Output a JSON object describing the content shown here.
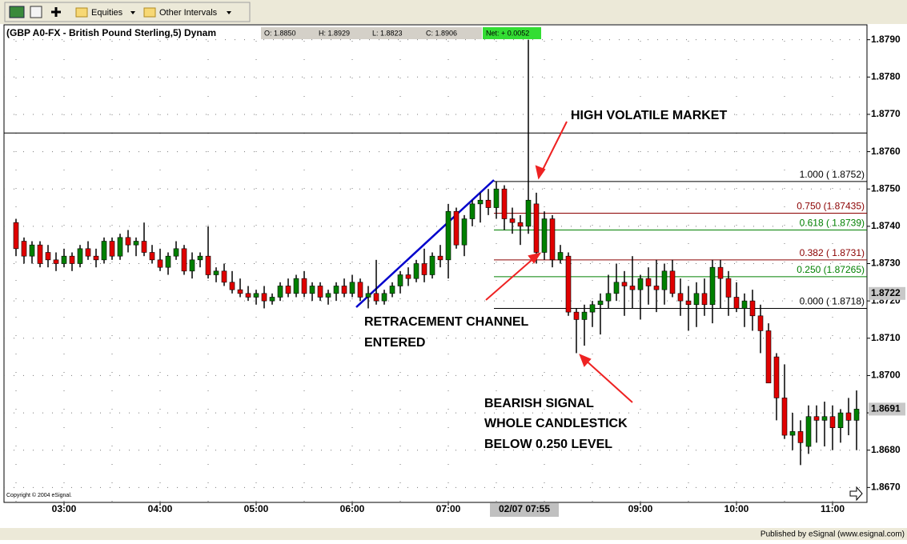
{
  "toolbar": {
    "items": [
      "Equities",
      "Other Intervals"
    ]
  },
  "chart_data": {
    "type": "candlestick",
    "title": "(GBP A0-FX - British Pound Sterling,5) Dynam",
    "ohlc_labels": [
      "O: 1.8850",
      "H: 1.8929",
      "L: 1.8823",
      "C: 1.8906"
    ],
    "net_label": "Net: + 0.0052",
    "copyright": "Copyright © 2004 eSignal.",
    "cursor_time": "02/07 07:55",
    "categories": [
      null,
      null,
      null,
      null,
      null,
      null,
      "03:00",
      null,
      null,
      null,
      null,
      null,
      null,
      null,
      null,
      null,
      null,
      null,
      "04:00",
      null,
      null,
      null,
      null,
      null,
      null,
      null,
      null,
      null,
      null,
      null,
      "05:00",
      null,
      null,
      null,
      null,
      null,
      null,
      null,
      null,
      null,
      null,
      null,
      "06:00",
      null,
      null,
      null,
      null,
      null,
      null,
      null,
      null,
      null,
      null,
      null,
      "07:00",
      null,
      null,
      null,
      null,
      null,
      null,
      null,
      null,
      null,
      null,
      null,
      null,
      null,
      null,
      null,
      null,
      null,
      null,
      null,
      null,
      null,
      null,
      null,
      "09:00",
      null,
      null,
      null,
      null,
      null,
      null,
      null,
      null,
      null,
      null,
      null,
      "10:00",
      null,
      null,
      null,
      null,
      null,
      null,
      null,
      null,
      null,
      null,
      null,
      "11:00",
      null,
      null,
      null
    ],
    "open": [
      1.8741,
      1.8736,
      1.8732,
      1.8735,
      1.8733,
      1.8731,
      1.873,
      1.8732,
      1.873,
      1.8734,
      1.8732,
      1.8731,
      1.8736,
      1.8732,
      1.8737,
      1.8735,
      1.8736,
      1.8733,
      1.8731,
      1.8729,
      1.8732,
      1.8734,
      1.8728,
      1.8731,
      1.8732,
      1.8727,
      1.8728,
      1.8725,
      1.8723,
      1.8722,
      1.8721,
      1.8722,
      1.872,
      1.8721,
      1.8724,
      1.8722,
      1.8726,
      1.8722,
      1.8724,
      1.8721,
      1.8722,
      1.8724,
      1.8722,
      1.8725,
      1.8721,
      1.8722,
      1.872,
      1.8722,
      1.8724,
      1.8727,
      1.8726,
      1.873,
      1.8727,
      1.8732,
      1.8731,
      1.8744,
      1.8735,
      1.8742,
      1.8746,
      1.8747,
      1.8745,
      1.875,
      1.8742,
      1.8741,
      1.874,
      1.8746,
      1.8733,
      1.8742,
      1.8731,
      1.8732,
      1.8717,
      1.8715,
      1.8717,
      1.8719,
      1.872,
      1.8722,
      1.8725,
      1.8724,
      1.8723,
      1.8726,
      1.8724,
      1.8723,
      1.8728,
      1.8722,
      1.872,
      1.8719,
      1.8722,
      1.8719,
      1.8729,
      1.8726,
      1.8721,
      1.8718,
      1.872,
      1.8716,
      1.8712,
      1.8705,
      1.8694,
      1.8684,
      1.8685,
      1.8681,
      1.8689,
      1.8688,
      1.8689,
      1.8686,
      1.869,
      1.8688
    ],
    "high": [
      1.8742,
      1.8737,
      1.8736,
      1.8736,
      1.8735,
      1.8733,
      1.8734,
      1.8733,
      1.8735,
      1.8736,
      1.8734,
      1.8737,
      1.8737,
      1.8738,
      1.8739,
      1.8737,
      1.8741,
      1.8735,
      1.8734,
      1.8733,
      1.8736,
      1.8735,
      1.8733,
      1.8733,
      1.874,
      1.8729,
      1.873,
      1.8728,
      1.8726,
      1.8724,
      1.8723,
      1.8724,
      1.8722,
      1.8725,
      1.8726,
      1.8727,
      1.8728,
      1.8725,
      1.8725,
      1.8723,
      1.8725,
      1.8726,
      1.8727,
      1.8726,
      1.8724,
      1.8731,
      1.8723,
      1.8725,
      1.8728,
      1.8729,
      1.8731,
      1.8734,
      1.8733,
      1.8735,
      1.8746,
      1.8745,
      1.8743,
      1.8747,
      1.8749,
      1.875,
      1.8752,
      1.8751,
      1.8745,
      1.8743,
      1.879,
      1.8749,
      1.8744,
      1.8743,
      1.8735,
      1.8733,
      1.8718,
      1.8719,
      1.872,
      1.8722,
      1.8727,
      1.873,
      1.8728,
      1.8732,
      1.8727,
      1.8729,
      1.8731,
      1.873,
      1.8731,
      1.8726,
      1.8724,
      1.8725,
      1.8726,
      1.8731,
      1.8731,
      1.8728,
      1.8725,
      1.8722,
      1.8723,
      1.8719,
      1.8714,
      1.8706,
      1.8703,
      1.869,
      1.8688,
      1.8692,
      1.8692,
      1.8693,
      1.8692,
      1.8691,
      1.8694,
      1.8696
    ],
    "low": [
      1.8732,
      1.873,
      1.873,
      1.8729,
      1.8729,
      1.8728,
      1.8729,
      1.8728,
      1.8729,
      1.8731,
      1.8729,
      1.873,
      1.8731,
      1.8731,
      1.8733,
      1.8732,
      1.8732,
      1.873,
      1.8728,
      1.8727,
      1.8731,
      1.8727,
      1.8726,
      1.8729,
      1.8726,
      1.8725,
      1.8724,
      1.8722,
      1.8721,
      1.872,
      1.8719,
      1.8718,
      1.8719,
      1.872,
      1.8721,
      1.8721,
      1.8721,
      1.872,
      1.872,
      1.8719,
      1.872,
      1.8721,
      1.8721,
      1.872,
      1.8718,
      1.8719,
      1.8719,
      1.8721,
      1.8722,
      1.8724,
      1.8725,
      1.8725,
      1.8726,
      1.8729,
      1.8726,
      1.8734,
      1.8732,
      1.874,
      1.8741,
      1.8743,
      1.8742,
      1.8739,
      1.8738,
      1.8735,
      1.8738,
      1.873,
      1.8731,
      1.8729,
      1.873,
      1.8716,
      1.8706,
      1.8708,
      1.8713,
      1.8711,
      1.8718,
      1.872,
      1.8716,
      1.8718,
      1.8715,
      1.8719,
      1.8717,
      1.8719,
      1.8721,
      1.8716,
      1.8712,
      1.8713,
      1.8716,
      1.8714,
      1.8718,
      1.8716,
      1.8717,
      1.8713,
      1.8712,
      1.8706,
      1.8698,
      1.8688,
      1.8683,
      1.868,
      1.8676,
      1.8679,
      1.8682,
      1.8681,
      1.868,
      1.8682,
      1.8684,
      1.868
    ],
    "close": [
      1.8734,
      1.8732,
      1.8735,
      1.873,
      1.8731,
      1.873,
      1.8732,
      1.873,
      1.8734,
      1.8732,
      1.8731,
      1.8736,
      1.8732,
      1.8737,
      1.8735,
      1.8736,
      1.8733,
      1.8731,
      1.8729,
      1.8732,
      1.8734,
      1.8728,
      1.8731,
      1.8732,
      1.8727,
      1.8728,
      1.8725,
      1.8723,
      1.8722,
      1.8721,
      1.8722,
      1.872,
      1.8721,
      1.8724,
      1.8722,
      1.8726,
      1.8722,
      1.8724,
      1.8721,
      1.8722,
      1.8724,
      1.8722,
      1.8725,
      1.8721,
      1.8722,
      1.872,
      1.8722,
      1.8724,
      1.8727,
      1.8726,
      1.873,
      1.8727,
      1.8732,
      1.8731,
      1.8744,
      1.8735,
      1.8742,
      1.8746,
      1.8747,
      1.8745,
      1.875,
      1.8742,
      1.8741,
      1.874,
      1.8747,
      1.8733,
      1.8742,
      1.8731,
      1.8733,
      1.8717,
      1.8715,
      1.8717,
      1.8719,
      1.872,
      1.8722,
      1.8725,
      1.8724,
      1.8723,
      1.8726,
      1.8724,
      1.8723,
      1.8728,
      1.8722,
      1.872,
      1.8719,
      1.8722,
      1.8719,
      1.8729,
      1.8726,
      1.8721,
      1.8718,
      1.872,
      1.8716,
      1.8712,
      1.8698,
      1.8694,
      1.8684,
      1.8685,
      1.8682,
      1.8689,
      1.8688,
      1.8689,
      1.8686,
      1.869,
      1.8688,
      1.8691
    ],
    "up_color": "#008000",
    "down_color": "#e00000",
    "ylim": [
      1.8666,
      1.8794
    ],
    "yticks": [
      {
        "value": 1.879,
        "label": "1.8790"
      },
      {
        "value": 1.878,
        "label": "1.8780"
      },
      {
        "value": 1.877,
        "label": "1.8770"
      },
      {
        "value": 1.876,
        "label": "1.8760"
      },
      {
        "value": 1.875,
        "label": "1.8750"
      },
      {
        "value": 1.874,
        "label": "1.8740"
      },
      {
        "value": 1.873,
        "label": "1.8730"
      },
      {
        "value": 1.872,
        "label": "1.8720"
      },
      {
        "value": 1.871,
        "label": "1.8710"
      },
      {
        "value": 1.87,
        "label": "1.8700"
      },
      {
        "value": 1.869,
        "label": "1.8690"
      },
      {
        "value": 1.868,
        "label": "1.8680"
      },
      {
        "value": 1.867,
        "label": "1.8670"
      }
    ],
    "grid": true,
    "price_markers": [
      1.8722,
      1.8691
    ],
    "horizontal_line": 1.8765,
    "fib_levels": [
      {
        "value": 1.8752,
        "label": "1.000 ( 1.8752)",
        "color": "#000000"
      },
      {
        "value": 1.87435,
        "label": "0.750 (1.87435)",
        "color": "#8b0000"
      },
      {
        "value": 1.8739,
        "label": "0.618 ( 1.8739)",
        "color": "#008000"
      },
      {
        "value": 1.8731,
        "label": "0.382 ( 1.8731)",
        "color": "#8b0000"
      },
      {
        "value": 1.87265,
        "label": "0.250 (1.87265)",
        "color": "#008000"
      },
      {
        "value": 1.8718,
        "label": "0.000 ( 1.8718)",
        "color": "#000000"
      }
    ],
    "annotations": [
      "HIGH VOLATILE MARKET",
      "RETRACEMENT CHANNEL",
      "ENTERED",
      "BEARISH SIGNAL",
      "WHOLE CANDLESTICK",
      "BELOW 0.250 LEVEL"
    ]
  },
  "footer": {
    "publisher": "Published by eSignal (www.esignal.com)"
  }
}
